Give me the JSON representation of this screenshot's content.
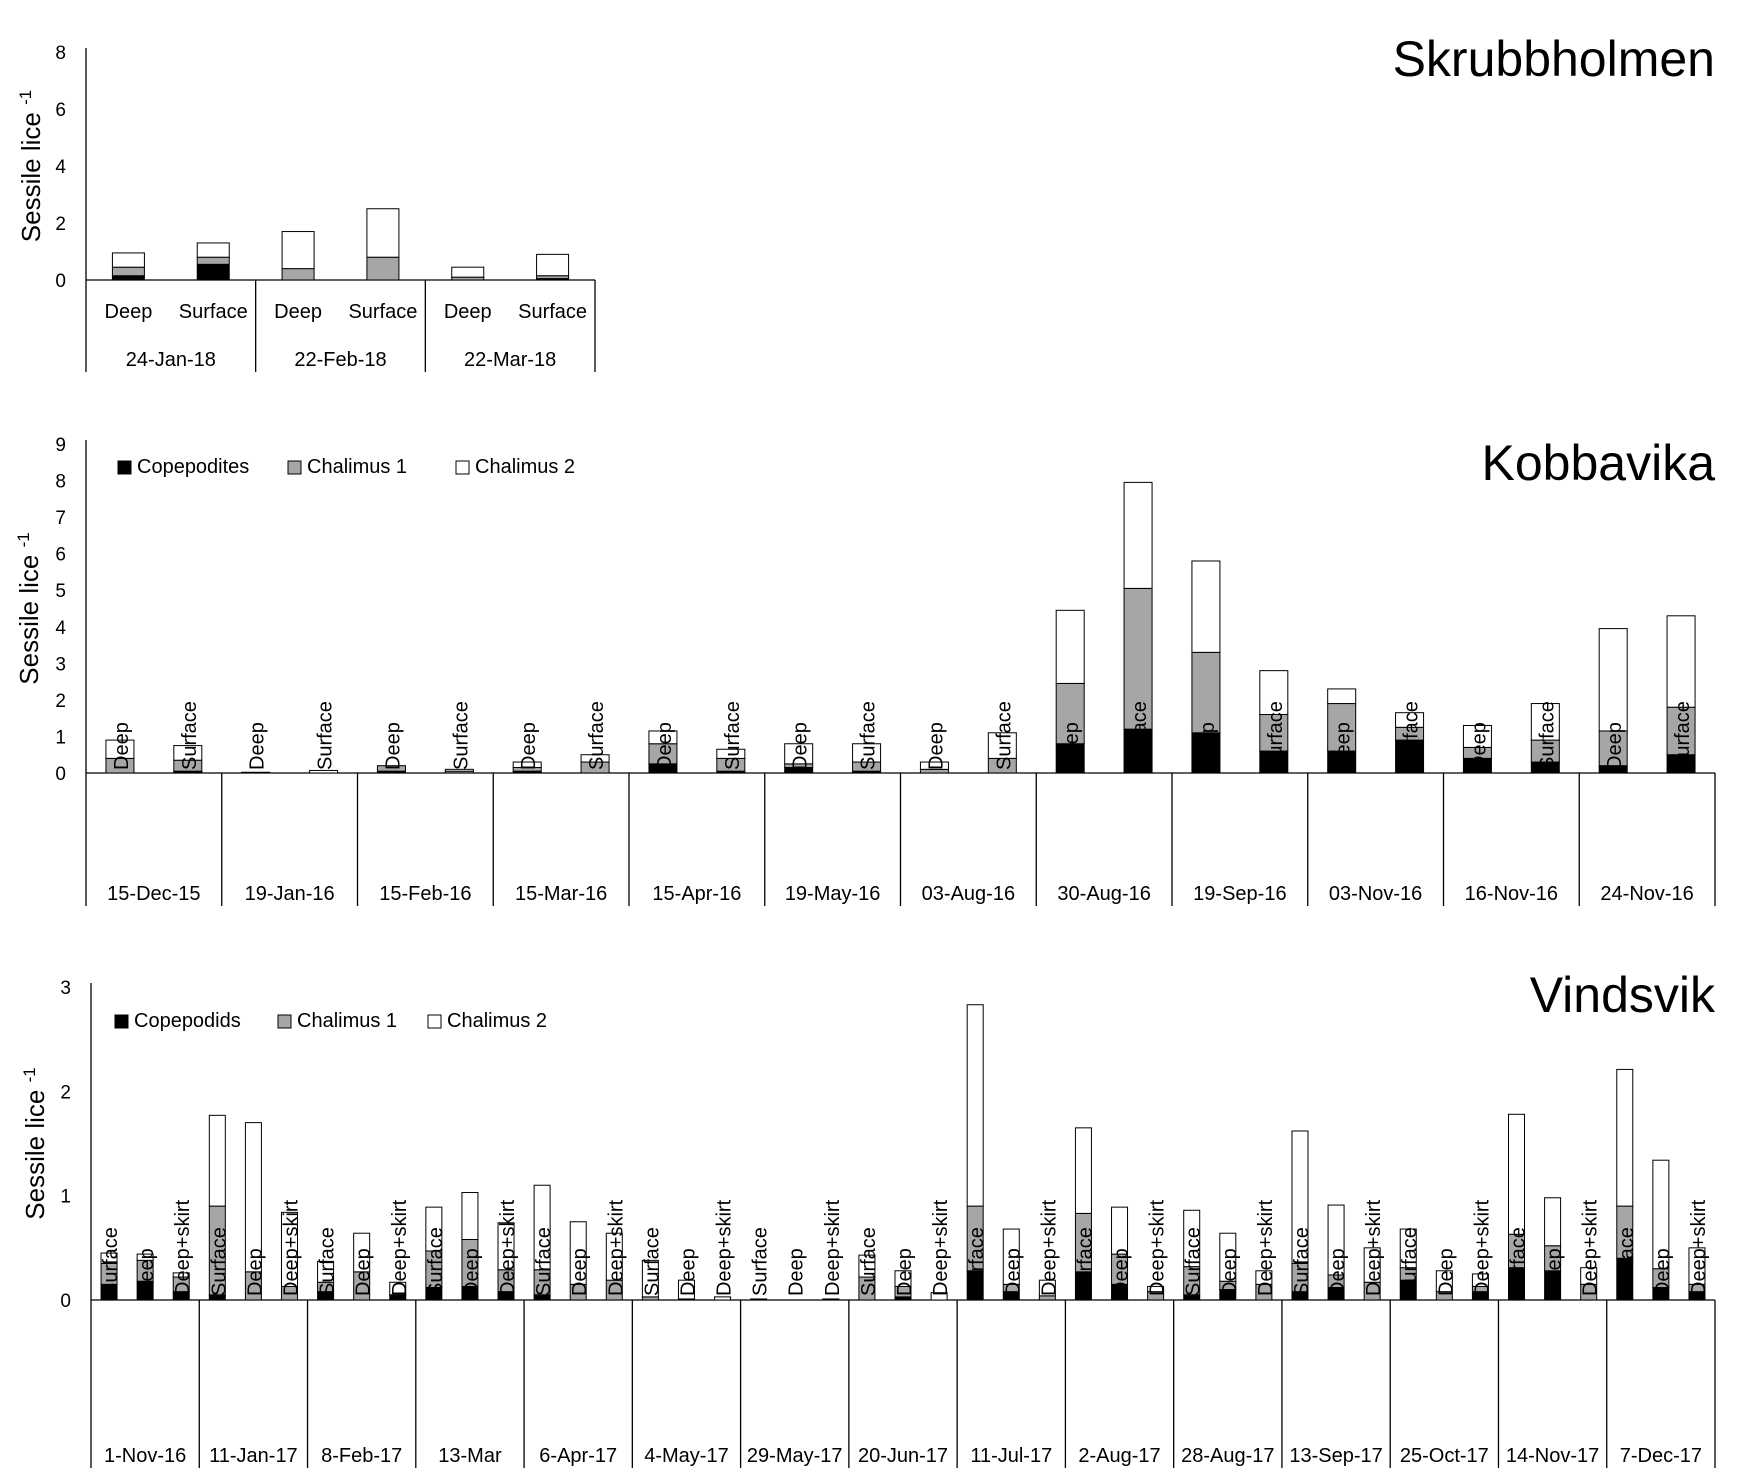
{
  "chart_data": [
    {
      "type": "bar",
      "stacked": true,
      "title": "Skrubbholmen",
      "ylabel": "Sessile lice -1",
      "ylim": [
        0,
        8
      ],
      "yticks": [
        0,
        2,
        4,
        6,
        8
      ],
      "legend": [],
      "groups": [
        {
          "date": "24-Jan-18",
          "bars": [
            {
              "label": "Deep",
              "values": [
                0.15,
                0.3,
                0.5
              ]
            },
            {
              "label": "Surface",
              "values": [
                0.55,
                0.25,
                0.5
              ]
            }
          ]
        },
        {
          "date": "22-Feb-18",
          "bars": [
            {
              "label": "Deep",
              "values": [
                0.0,
                0.4,
                1.3
              ]
            },
            {
              "label": "Surface",
              "values": [
                0.0,
                0.8,
                1.7
              ]
            }
          ]
        },
        {
          "date": "22-Mar-18",
          "bars": [
            {
              "label": "Deep",
              "values": [
                0.0,
                0.1,
                0.35
              ]
            },
            {
              "label": "Surface",
              "values": [
                0.05,
                0.1,
                0.75
              ]
            }
          ]
        }
      ]
    },
    {
      "type": "bar",
      "stacked": true,
      "title": "Kobbavika",
      "ylabel": "Sessile lice -1",
      "ylim": [
        0,
        9
      ],
      "yticks": [
        0,
        1,
        2,
        3,
        4,
        5,
        6,
        7,
        8,
        9
      ],
      "legend": [
        "Copepodites",
        "Chalimus 1",
        "Chalimus 2"
      ],
      "groups": [
        {
          "date": "15-Dec-15",
          "bars": [
            {
              "label": "Deep",
              "values": [
                0.0,
                0.4,
                0.5
              ]
            },
            {
              "label": "Surface",
              "values": [
                0.05,
                0.3,
                0.4
              ]
            }
          ]
        },
        {
          "date": "19-Jan-16",
          "bars": [
            {
              "label": "Deep",
              "values": [
                0.0,
                0.0,
                0.02
              ]
            },
            {
              "label": "Surface",
              "values": [
                0.0,
                0.0,
                0.07
              ]
            }
          ]
        },
        {
          "date": "15-Feb-16",
          "bars": [
            {
              "label": "Deep",
              "values": [
                0.05,
                0.15,
                0.0
              ]
            },
            {
              "label": "Surface",
              "values": [
                0.0,
                0.05,
                0.05
              ]
            }
          ]
        },
        {
          "date": "15-Mar-16",
          "bars": [
            {
              "label": "Deep",
              "values": [
                0.05,
                0.1,
                0.15
              ]
            },
            {
              "label": "Surface",
              "values": [
                0.0,
                0.3,
                0.2
              ]
            }
          ]
        },
        {
          "date": "15-Apr-16",
          "bars": [
            {
              "label": "Deep",
              "values": [
                0.25,
                0.55,
                0.35
              ]
            },
            {
              "label": "Surface",
              "values": [
                0.05,
                0.35,
                0.25
              ]
            }
          ]
        },
        {
          "date": "19-May-16",
          "bars": [
            {
              "label": "Deep",
              "values": [
                0.15,
                0.1,
                0.55
              ]
            },
            {
              "label": "Surface",
              "values": [
                0.05,
                0.25,
                0.5
              ]
            }
          ]
        },
        {
          "date": "03-Aug-16",
          "bars": [
            {
              "label": "Deep",
              "values": [
                0.0,
                0.1,
                0.2
              ]
            },
            {
              "label": "Surface",
              "values": [
                0.0,
                0.4,
                0.7
              ]
            }
          ]
        },
        {
          "date": "30-Aug-16",
          "bars": [
            {
              "label": "Deep",
              "values": [
                0.8,
                1.65,
                2.0
              ]
            },
            {
              "label": "Surface",
              "values": [
                1.2,
                3.85,
                2.9
              ]
            }
          ]
        },
        {
          "date": "19-Sep-16",
          "bars": [
            {
              "label": "Deep",
              "values": [
                1.1,
                2.2,
                2.5
              ]
            },
            {
              "label": "Surface",
              "values": [
                0.6,
                1.0,
                1.2
              ]
            }
          ]
        },
        {
          "date": "03-Nov-16",
          "bars": [
            {
              "label": "Deep",
              "values": [
                0.6,
                1.3,
                0.4
              ]
            },
            {
              "label": "Surface",
              "values": [
                0.9,
                0.35,
                0.4
              ]
            }
          ]
        },
        {
          "date": "16-Nov-16",
          "bars": [
            {
              "label": "Deep",
              "values": [
                0.4,
                0.3,
                0.6
              ]
            },
            {
              "label": "Surface",
              "values": [
                0.3,
                0.6,
                1.0
              ]
            }
          ]
        },
        {
          "date": "24-Nov-16",
          "bars": [
            {
              "label": "Deep",
              "values": [
                0.2,
                0.95,
                2.8
              ]
            },
            {
              "label": "Surface",
              "values": [
                0.5,
                1.3,
                2.5
              ]
            }
          ]
        }
      ]
    },
    {
      "type": "bar",
      "stacked": true,
      "title": "Vindsvik",
      "ylabel": "Sessile lice -1",
      "ylim": [
        0,
        3
      ],
      "yticks": [
        0,
        1,
        2,
        3
      ],
      "legend": [
        "Copepodids",
        "Chalimus 1",
        "Chalimus 2"
      ],
      "groups": [
        {
          "date": "1-Nov-16",
          "bars": [
            {
              "label": "Surface",
              "values": [
                0.15,
                0.2,
                0.1
              ]
            },
            {
              "label": "Deep",
              "values": [
                0.18,
                0.2,
                0.06
              ]
            },
            {
              "label": "Deep+skirt",
              "values": [
                0.08,
                0.14,
                0.04
              ]
            }
          ]
        },
        {
          "date": "11-Jan-17",
          "bars": [
            {
              "label": "Surface",
              "values": [
                0.05,
                0.85,
                0.87
              ]
            },
            {
              "label": "Deep",
              "values": [
                0.0,
                0.27,
                1.43
              ]
            },
            {
              "label": "Deep+skirt",
              "values": [
                0.0,
                0.13,
                0.71
              ]
            }
          ]
        },
        {
          "date": "8-Feb-17",
          "bars": [
            {
              "label": "Surface",
              "values": [
                0.08,
                0.09,
                0.2
              ]
            },
            {
              "label": "Deep",
              "values": [
                0.0,
                0.27,
                0.37
              ]
            },
            {
              "label": "Deep+skirt",
              "values": [
                0.05,
                0.0,
                0.12
              ]
            }
          ]
        },
        {
          "date": "13-Mar",
          "bars": [
            {
              "label": "Surface",
              "values": [
                0.12,
                0.35,
                0.42
              ]
            },
            {
              "label": "Deep",
              "values": [
                0.13,
                0.45,
                0.45
              ]
            },
            {
              "label": "Deep+skirt",
              "values": [
                0.08,
                0.21,
                0.45
              ]
            }
          ]
        },
        {
          "date": "6-Apr-17",
          "bars": [
            {
              "label": "Surface",
              "values": [
                0.05,
                0.24,
                0.81
              ]
            },
            {
              "label": "Deep",
              "values": [
                0.0,
                0.15,
                0.6
              ]
            },
            {
              "label": "Deep+skirt",
              "values": [
                0.0,
                0.19,
                0.45
              ]
            }
          ]
        },
        {
          "date": "4-May-17",
          "bars": [
            {
              "label": "Surface",
              "values": [
                0.0,
                0.03,
                0.35
              ]
            },
            {
              "label": "Deep",
              "values": [
                0.0,
                0.01,
                0.18
              ]
            },
            {
              "label": "Deep+skirt",
              "values": [
                0.0,
                0.0,
                0.03
              ]
            }
          ]
        },
        {
          "date": "29-May-17",
          "bars": [
            {
              "label": "Surface",
              "values": [
                0.01,
                0.0,
                0.0
              ]
            },
            {
              "label": "Deep",
              "values": [
                0.0,
                0.0,
                0.0
              ]
            },
            {
              "label": "Deep+skirt",
              "values": [
                0.01,
                0.0,
                0.0
              ]
            }
          ]
        },
        {
          "date": "20-Jun-17",
          "bars": [
            {
              "label": "Surface",
              "values": [
                0.0,
                0.22,
                0.21
              ]
            },
            {
              "label": "Deep",
              "values": [
                0.03,
                0.1,
                0.15
              ]
            },
            {
              "label": "Deep+skirt",
              "values": [
                0.0,
                0.0,
                0.07
              ]
            }
          ]
        },
        {
          "date": "11-Jul-17",
          "bars": [
            {
              "label": "Surface",
              "values": [
                0.28,
                0.62,
                1.93
              ]
            },
            {
              "label": "Deep",
              "values": [
                0.08,
                0.07,
                0.53
              ]
            },
            {
              "label": "Deep+skirt",
              "values": [
                0.0,
                0.04,
                0.15
              ]
            }
          ]
        },
        {
          "date": "2-Aug-17",
          "bars": [
            {
              "label": "Surface",
              "values": [
                0.27,
                0.56,
                0.82
              ]
            },
            {
              "label": "Deep",
              "values": [
                0.15,
                0.29,
                0.45
              ]
            },
            {
              "label": "Deep+skirt",
              "values": [
                0.0,
                0.08,
                0.05
              ]
            }
          ]
        },
        {
          "date": "28-Aug-17",
          "bars": [
            {
              "label": "Surface",
              "values": [
                0.05,
                0.27,
                0.54
              ]
            },
            {
              "label": "Deep",
              "values": [
                0.1,
                0.08,
                0.46
              ]
            },
            {
              "label": "Deep+skirt",
              "values": [
                0.0,
                0.15,
                0.13
              ]
            }
          ]
        },
        {
          "date": "13-Sep-17",
          "bars": [
            {
              "label": "Surface",
              "values": [
                0.08,
                0.27,
                1.27
              ]
            },
            {
              "label": "Deep",
              "values": [
                0.12,
                0.12,
                0.67
              ]
            },
            {
              "label": "Deep+skirt",
              "values": [
                0.0,
                0.17,
                0.33
              ]
            }
          ]
        },
        {
          "date": "25-Oct-17",
          "bars": [
            {
              "label": "Surface",
              "values": [
                0.19,
                0.12,
                0.37
              ]
            },
            {
              "label": "Deep",
              "values": [
                0.0,
                0.08,
                0.2
              ]
            },
            {
              "label": "Deep+skirt",
              "values": [
                0.08,
                0.05,
                0.12
              ]
            }
          ]
        },
        {
          "date": "14-Nov-17",
          "bars": [
            {
              "label": "Surface",
              "values": [
                0.31,
                0.32,
                1.15
              ]
            },
            {
              "label": "Deep",
              "values": [
                0.28,
                0.24,
                0.46
              ]
            },
            {
              "label": "Deep+skirt",
              "values": [
                0.0,
                0.15,
                0.16
              ]
            }
          ]
        },
        {
          "date": "7-Dec-17",
          "bars": [
            {
              "label": "Surface",
              "values": [
                0.4,
                0.5,
                1.31
              ]
            },
            {
              "label": "Deep",
              "values": [
                0.12,
                0.18,
                1.04
              ]
            },
            {
              "label": "Deep+skirt",
              "values": [
                0.08,
                0.07,
                0.35
              ]
            }
          ]
        }
      ]
    }
  ],
  "colors": {
    "copepodites": "#000000",
    "chalimus1": "#a6a6a6",
    "chalimus2": "#ffffff",
    "axis": "#000000"
  }
}
